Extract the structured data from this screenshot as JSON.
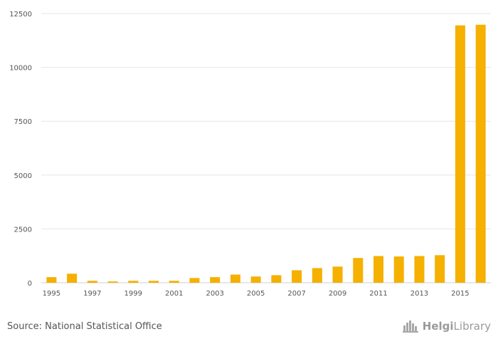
{
  "chart_data": {
    "type": "bar",
    "categories": [
      "1995",
      "1996",
      "1997",
      "1998",
      "1999",
      "2000",
      "2001",
      "2002",
      "2003",
      "2004",
      "2005",
      "2006",
      "2007",
      "2008",
      "2009",
      "2010",
      "2011",
      "2012",
      "2013",
      "2014",
      "2015",
      "2016"
    ],
    "values": [
      260,
      420,
      90,
      60,
      90,
      90,
      90,
      220,
      260,
      380,
      290,
      350,
      580,
      680,
      750,
      1150,
      1240,
      1220,
      1240,
      1280,
      11950,
      11980
    ],
    "x_tick_labels": [
      "1995",
      "1997",
      "1999",
      "2001",
      "2003",
      "2005",
      "2007",
      "2009",
      "2011",
      "2013",
      "2015"
    ],
    "y_ticks": [
      0,
      2500,
      5000,
      7500,
      10000,
      12500
    ],
    "ylim": [
      0,
      12500
    ],
    "title": "",
    "xlabel": "",
    "ylabel": "",
    "grid": true,
    "bar_color": "#f5b000",
    "grid_color": "#e6e6e6"
  },
  "source": "Source: National Statistical Office",
  "logo": {
    "name_bold": "Helgi",
    "name_light": "Library",
    "icon": "helgi-library-skyline-icon"
  }
}
